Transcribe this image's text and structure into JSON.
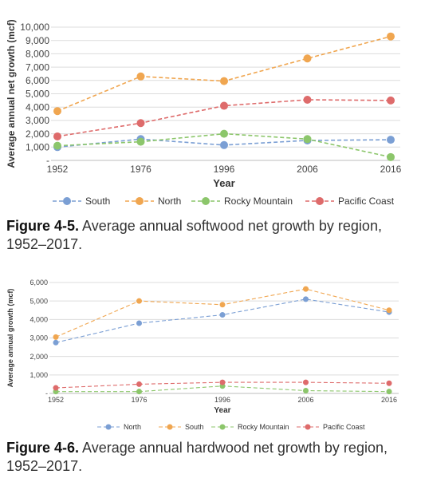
{
  "chart_data": [
    {
      "type": "line",
      "xlabel": "Year",
      "ylabel": "Average annual net growth (mcf)",
      "categories": [
        "1952",
        "1976",
        "1996",
        "2006",
        "2016"
      ],
      "y_tick_labels": [
        "-",
        "1,000",
        "2,000",
        "3,000",
        "4,000",
        "5,000",
        "6,000",
        "7,000",
        "8,000",
        "9,000",
        "10,000"
      ],
      "ylim": [
        0,
        10000
      ],
      "grid": true,
      "legend_position": "bottom",
      "series": [
        {
          "name": "South",
          "color": "#7b9fd4",
          "values": [
            1000,
            1600,
            1150,
            1500,
            1550
          ]
        },
        {
          "name": "North",
          "color": "#f0a650",
          "values": [
            3700,
            6300,
            5950,
            7650,
            9300
          ]
        },
        {
          "name": "Rocky Mountain",
          "color": "#8cc66b",
          "values": [
            1100,
            1400,
            2000,
            1600,
            250
          ]
        },
        {
          "name": "Pacific Coast",
          "color": "#de6b6b",
          "values": [
            1800,
            2800,
            4100,
            4550,
            4500
          ]
        }
      ]
    },
    {
      "type": "line",
      "xlabel": "Year",
      "ylabel": "Average annual growth (mcf)",
      "categories": [
        "1952",
        "1976",
        "1996",
        "2006",
        "2016"
      ],
      "y_tick_labels": [
        "-",
        "1,000",
        "2,000",
        "3,000",
        "4,000",
        "5,000",
        "6,000"
      ],
      "ylim": [
        0,
        6000
      ],
      "grid": true,
      "legend_position": "bottom",
      "series": [
        {
          "name": "North",
          "color": "#7b9fd4",
          "values": [
            2750,
            3800,
            4250,
            5100,
            4400
          ]
        },
        {
          "name": "South",
          "color": "#f0a650",
          "values": [
            3050,
            5000,
            4800,
            5650,
            4500
          ]
        },
        {
          "name": "Rocky Mountain",
          "color": "#8cc66b",
          "values": [
            100,
            100,
            400,
            150,
            100
          ]
        },
        {
          "name": "Pacific Coast",
          "color": "#de6b6b",
          "values": [
            300,
            500,
            600,
            600,
            550
          ]
        }
      ]
    }
  ],
  "captions": [
    {
      "label": "Figure 4-5.",
      "text": " Average annual softwood net growth by region, 1952–2017."
    },
    {
      "label": "Figure 4-6.",
      "text": " Average annual hardwood net growth by region, 1952–2017."
    }
  ]
}
